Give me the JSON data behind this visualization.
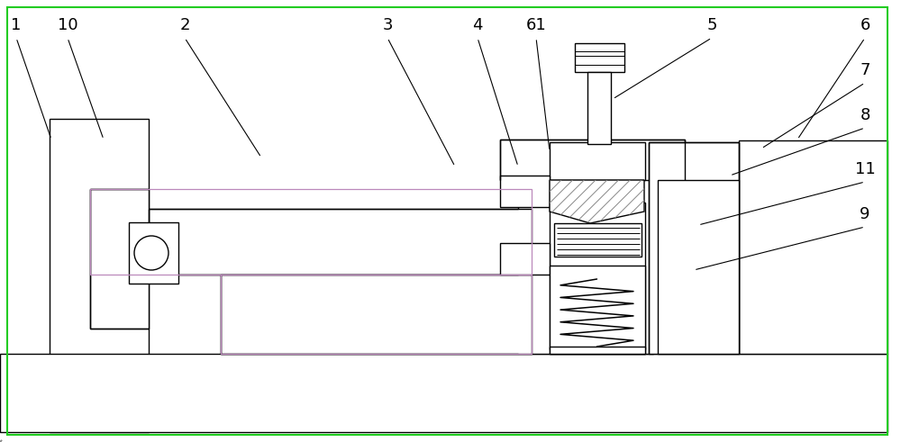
{
  "bg_color": "#ffffff",
  "lc": "#000000",
  "hatch_color": "#777777",
  "purple": "#bb88bb",
  "green_border": "#22cc22",
  "fig_width": 10.0,
  "fig_height": 4.91,
  "labels": [
    [
      "1",
      18,
      28,
      57,
      155
    ],
    [
      "10",
      75,
      28,
      115,
      155
    ],
    [
      "2",
      205,
      28,
      290,
      175
    ],
    [
      "3",
      430,
      28,
      505,
      185
    ],
    [
      "4",
      530,
      28,
      575,
      185
    ],
    [
      "61",
      595,
      28,
      610,
      168
    ],
    [
      "5",
      790,
      28,
      680,
      110
    ],
    [
      "6",
      960,
      28,
      885,
      155
    ],
    [
      "7",
      960,
      78,
      845,
      165
    ],
    [
      "8",
      960,
      128,
      810,
      195
    ],
    [
      "11",
      960,
      188,
      775,
      250
    ],
    [
      "9",
      960,
      238,
      770,
      300
    ]
  ]
}
